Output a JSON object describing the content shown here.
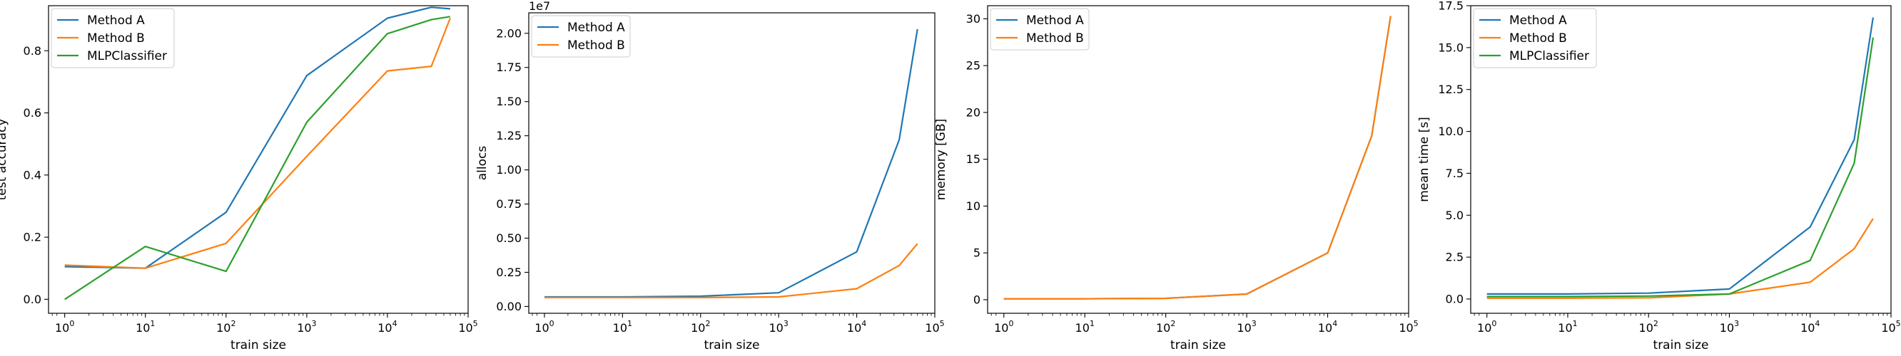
{
  "chart_data": [
    {
      "type": "line",
      "xlabel": "train size",
      "ylabel": "test accuracy",
      "xscale": "log",
      "xlim": [
        0.63,
        100000
      ],
      "ylim": [
        -0.045,
        0.945
      ],
      "yticks": [
        0.0,
        0.2,
        0.4,
        0.6,
        0.8
      ],
      "ytick_labels": [
        "0.0",
        "0.2",
        "0.4",
        "0.6",
        "0.8"
      ],
      "legend_position": "upper-left",
      "series": [
        {
          "name": "Method A",
          "color": "#1f77b4",
          "x": [
            1,
            10,
            100,
            1000,
            10000,
            35000,
            60000
          ],
          "y": [
            0.105,
            0.1,
            0.28,
            0.72,
            0.905,
            0.94,
            0.935
          ]
        },
        {
          "name": "Method B",
          "color": "#ff7f0e",
          "x": [
            1,
            10,
            100,
            1000,
            10000,
            35000,
            60000
          ],
          "y": [
            0.11,
            0.1,
            0.18,
            0.46,
            0.735,
            0.75,
            0.905
          ]
        },
        {
          "name": "MLPClassifier",
          "color": "#2ca02c",
          "x": [
            1,
            10,
            100,
            1000,
            10000,
            35000,
            60000
          ],
          "y": [
            0.0,
            0.17,
            0.09,
            0.57,
            0.855,
            0.9,
            0.91
          ]
        }
      ]
    },
    {
      "type": "line",
      "xlabel": "train size",
      "ylabel": "allocs",
      "xscale": "log",
      "xlim": [
        0.63,
        100000
      ],
      "ylim": [
        -0.05,
        2.15
      ],
      "offset_text": "1e7",
      "yticks": [
        0.0,
        0.25,
        0.5,
        0.75,
        1.0,
        1.25,
        1.5,
        1.75,
        2.0
      ],
      "ytick_labels": [
        "0.00",
        "0.25",
        "0.50",
        "0.75",
        "1.00",
        "1.25",
        "1.50",
        "1.75",
        "2.00"
      ],
      "legend_position": "upper-left",
      "series": [
        {
          "name": "Method A",
          "color": "#1f77b4",
          "x": [
            1,
            10,
            100,
            1000,
            10000,
            35000,
            60000
          ],
          "y": [
            0.07,
            0.07,
            0.075,
            0.1,
            0.4,
            1.22,
            2.03
          ]
        },
        {
          "name": "Method B",
          "color": "#ff7f0e",
          "x": [
            1,
            10,
            100,
            1000,
            10000,
            35000,
            60000
          ],
          "y": [
            0.065,
            0.065,
            0.065,
            0.07,
            0.13,
            0.3,
            0.46
          ]
        }
      ]
    },
    {
      "type": "line",
      "xlabel": "train size",
      "ylabel": "memory [GB]",
      "xscale": "log",
      "xlim": [
        0.63,
        100000
      ],
      "ylim": [
        -1.45,
        31.4
      ],
      "yticks": [
        0,
        5,
        10,
        15,
        20,
        25,
        30
      ],
      "ytick_labels": [
        "0",
        "5",
        "10",
        "15",
        "20",
        "25",
        "30"
      ],
      "legend_position": "upper-left",
      "series": [
        {
          "name": "Method A",
          "color": "#1f77b4",
          "x": [
            1,
            10,
            100,
            1000,
            10000,
            35000,
            60000
          ],
          "y": [
            0.1,
            0.1,
            0.15,
            0.6,
            5.0,
            17.5,
            30.3
          ]
        },
        {
          "name": "Method B",
          "color": "#ff7f0e",
          "x": [
            1,
            10,
            100,
            1000,
            10000,
            35000,
            60000
          ],
          "y": [
            0.1,
            0.1,
            0.15,
            0.6,
            5.0,
            17.5,
            30.3
          ]
        }
      ]
    },
    {
      "type": "line",
      "xlabel": "train size",
      "ylabel": "mean time [s]",
      "xscale": "log",
      "xlim": [
        0.63,
        100000
      ],
      "ylim": [
        -0.85,
        17.5
      ],
      "yticks": [
        0.0,
        2.5,
        5.0,
        7.5,
        10.0,
        12.5,
        15.0,
        17.5
      ],
      "ytick_labels": [
        "0.0",
        "2.5",
        "5.0",
        "7.5",
        "10.0",
        "12.5",
        "15.0",
        "17.5"
      ],
      "legend_position": "upper-left",
      "series": [
        {
          "name": "Method A",
          "color": "#1f77b4",
          "x": [
            1,
            10,
            100,
            1000,
            10000,
            35000,
            60000
          ],
          "y": [
            0.3,
            0.3,
            0.35,
            0.6,
            4.3,
            9.5,
            16.8
          ]
        },
        {
          "name": "Method B",
          "color": "#ff7f0e",
          "x": [
            1,
            10,
            100,
            1000,
            10000,
            35000,
            60000
          ],
          "y": [
            0.05,
            0.05,
            0.07,
            0.3,
            1.0,
            3.0,
            4.8
          ]
        },
        {
          "name": "MLPClassifier",
          "color": "#2ca02c",
          "x": [
            1,
            10,
            100,
            1000,
            10000,
            35000,
            60000
          ],
          "y": [
            0.15,
            0.15,
            0.18,
            0.3,
            2.3,
            8.1,
            15.6
          ]
        }
      ]
    }
  ],
  "xticks": [
    1,
    10,
    100,
    1000,
    10000,
    100000
  ]
}
